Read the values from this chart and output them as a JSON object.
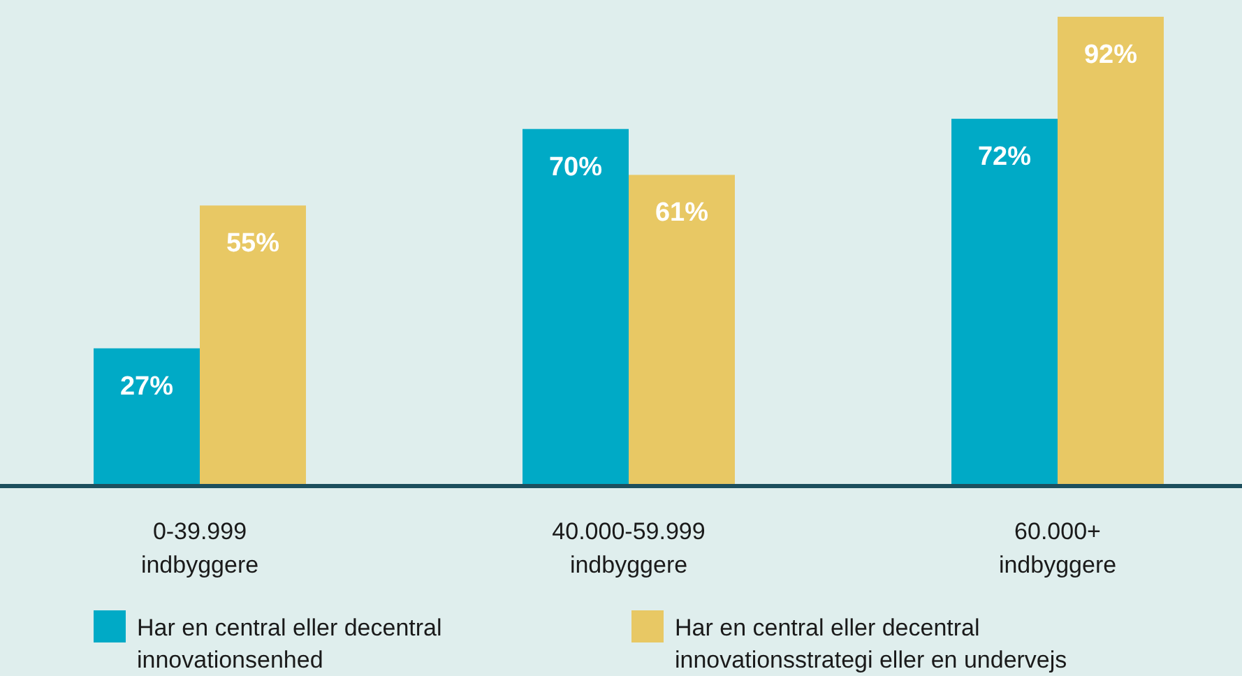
{
  "chart_data": {
    "type": "bar",
    "categories": [
      "0-39.999 indbyggere",
      "40.000-59.999 indbyggere",
      "60.000+ indbyggere"
    ],
    "series": [
      {
        "name": "Har en central eller decentral innovationsenhed",
        "color": "#00aac6",
        "values": [
          27,
          70,
          72
        ],
        "value_labels": [
          "27%",
          "70%",
          "72%"
        ]
      },
      {
        "name": "Har en central eller decentral innovationsstrategi eller en undervejs",
        "color": "#e8c864",
        "values": [
          55,
          61,
          92
        ],
        "value_labels": [
          "55%",
          "61%",
          "92%"
        ]
      }
    ],
    "legend": "bottom"
  }
}
